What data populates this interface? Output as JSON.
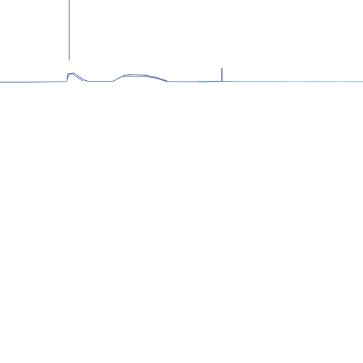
{
  "colors": {
    "background": "#ffffff",
    "trace_primary": "#4a5a9e",
    "trace_secondary": "#7fc3de",
    "marker_dark": "#2f3f86"
  }
}
